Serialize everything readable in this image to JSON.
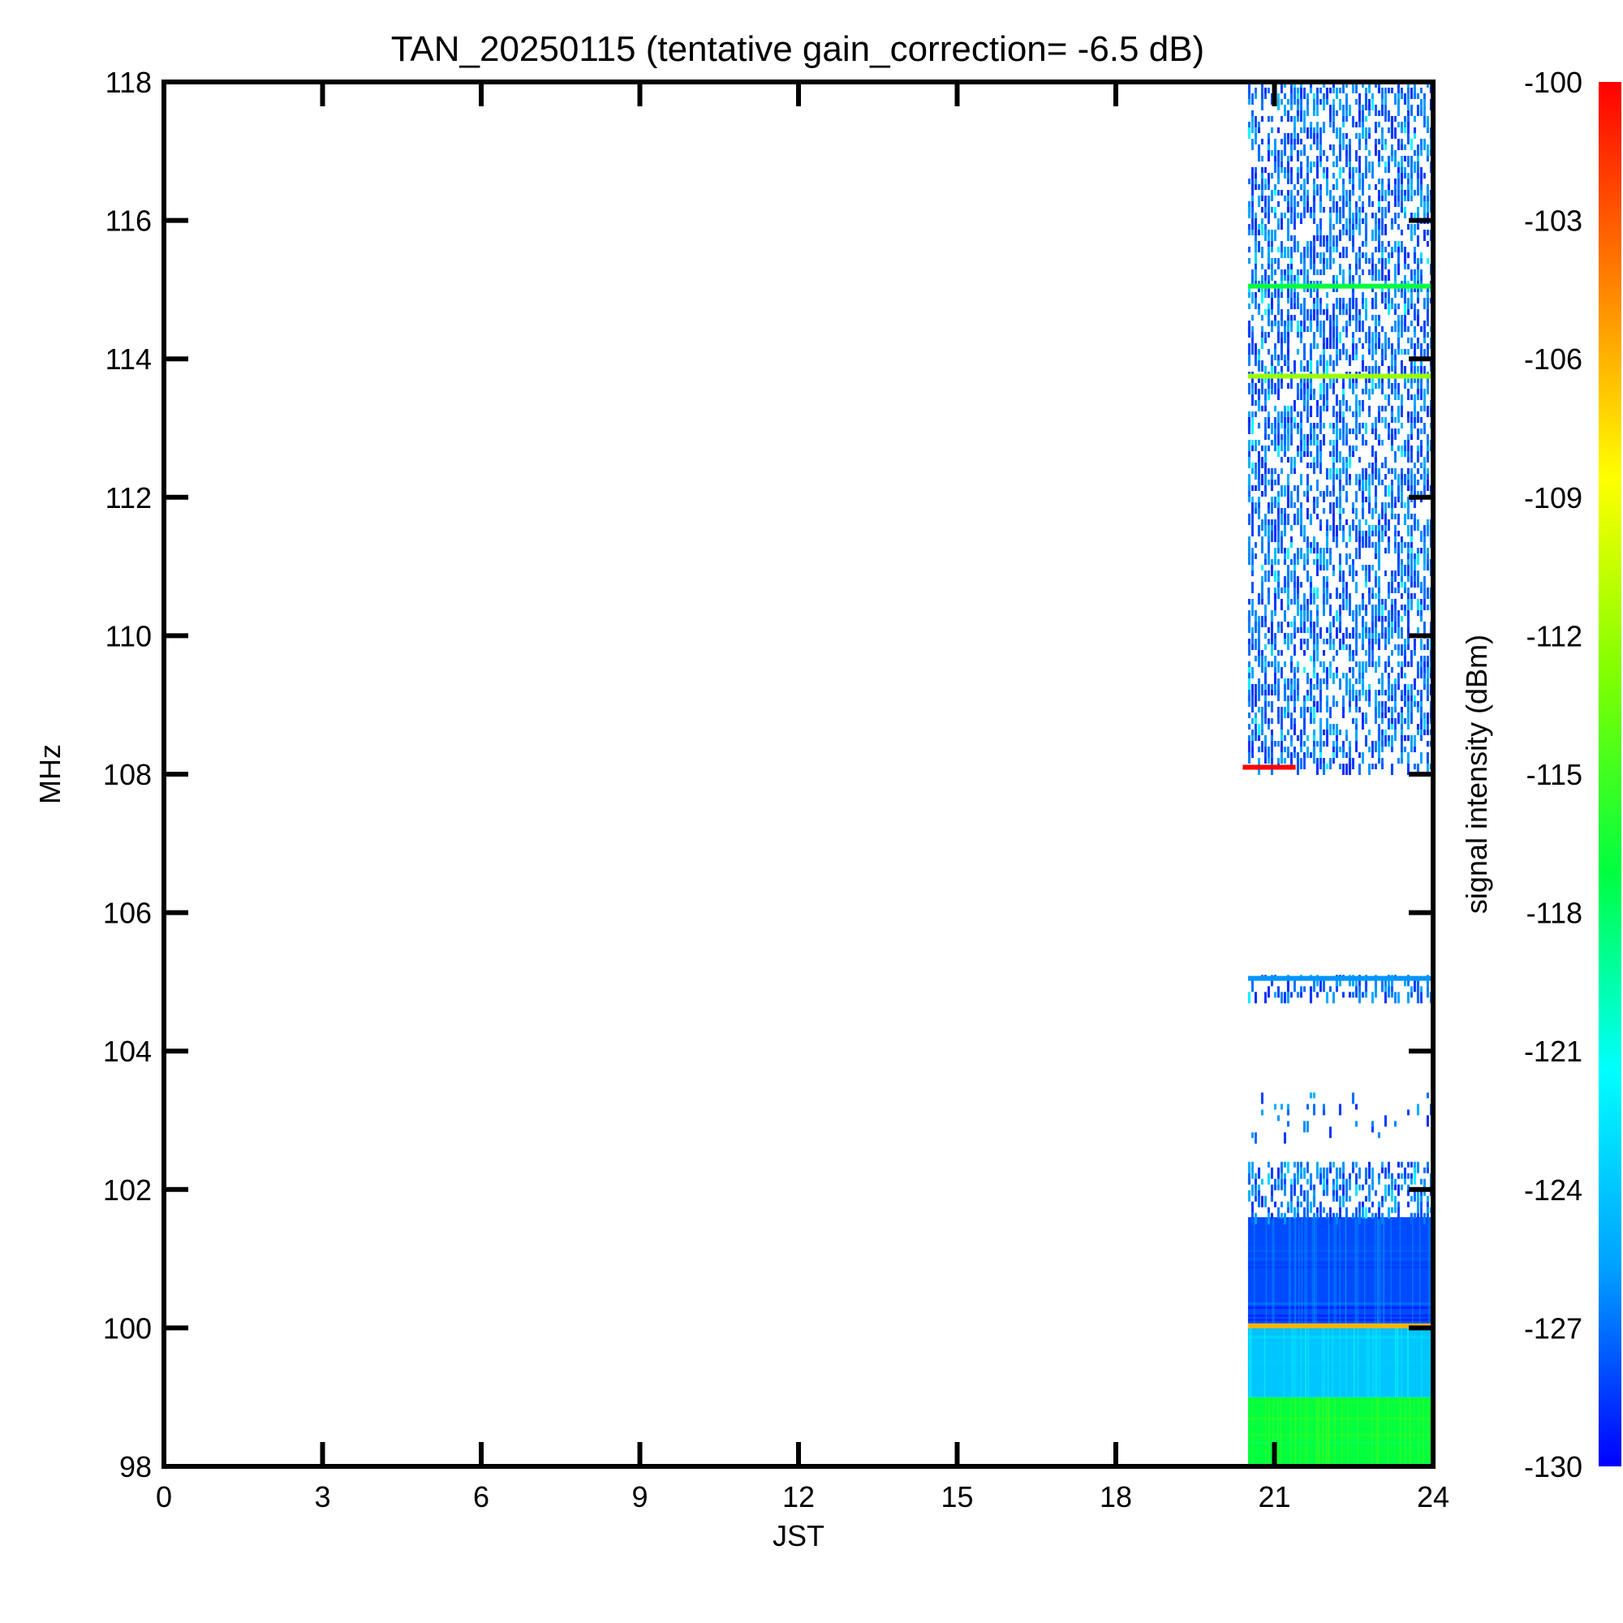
{
  "chart_data": {
    "type": "heatmap",
    "title": "TAN_20250115 (tentative gain_correction= -6.5 dB)",
    "xlabel": "JST",
    "ylabel": "MHz",
    "xlim": [
      0,
      24
    ],
    "ylim": [
      98,
      118
    ],
    "xticks": [
      "0",
      "3",
      "6",
      "9",
      "12",
      "15",
      "18",
      "21",
      "24"
    ],
    "yticks": [
      "98",
      "100",
      "102",
      "104",
      "106",
      "108",
      "110",
      "112",
      "114",
      "116",
      "118"
    ],
    "data_time_range": [
      20.5,
      24
    ],
    "colorbar": {
      "label": "signal intensity (dBm)",
      "range": [
        -130,
        -100
      ],
      "ticks": [
        "-100",
        "-103",
        "-106",
        "-109",
        "-112",
        "-115",
        "-118",
        "-121",
        "-124",
        "-127",
        "-130"
      ],
      "colormap": [
        "#0000ff",
        "#00a0ff",
        "#00ffff",
        "#00ff40",
        "#80ff00",
        "#ffff00",
        "#ff8000",
        "#ff0000"
      ]
    },
    "bands": [
      {
        "freq_low": 98.0,
        "freq_high": 99.0,
        "level_dbm": -117,
        "texture": "solid"
      },
      {
        "freq_low": 99.0,
        "freq_high": 100.0,
        "level_dbm": -124,
        "texture": "solid"
      },
      {
        "freq_low": 100.0,
        "freq_high": 101.6,
        "level_dbm": -128,
        "texture": "solid"
      },
      {
        "freq_low": 101.6,
        "freq_high": 102.4,
        "level_dbm": -129,
        "texture": "sparse"
      },
      {
        "freq_low": 102.8,
        "freq_high": 103.4,
        "level_dbm": -129,
        "texture": "very-sparse"
      },
      {
        "freq_low": 104.8,
        "freq_high": 105.1,
        "level_dbm": -129,
        "texture": "sparse"
      },
      {
        "freq_low": 108.1,
        "freq_high": 118.0,
        "level_dbm": -129,
        "texture": "sparse"
      }
    ],
    "lines": [
      {
        "freq": 100.03,
        "level_dbm": -106,
        "t_start": 20.5,
        "t_end": 24
      },
      {
        "freq": 105.05,
        "level_dbm": -126,
        "t_start": 20.5,
        "t_end": 24
      },
      {
        "freq": 108.1,
        "level_dbm": -100,
        "t_start": 20.4,
        "t_end": 21.4
      },
      {
        "freq": 113.75,
        "level_dbm": -112,
        "t_start": 20.5,
        "t_end": 24
      },
      {
        "freq": 115.05,
        "level_dbm": -117,
        "t_start": 20.5,
        "t_end": 24
      }
    ]
  }
}
